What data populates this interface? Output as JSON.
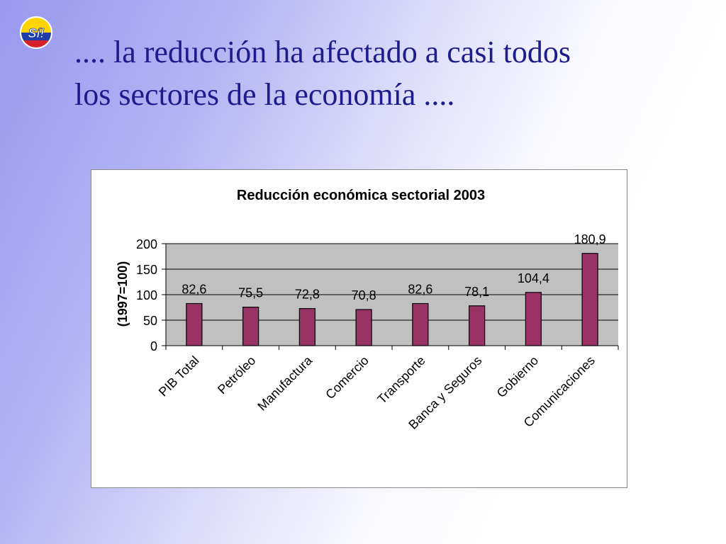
{
  "slide": {
    "title_line1": ".... la reducción ha afectado a casi todos",
    "title_line2": "los sectores de la economía ....",
    "logo_text": "Sí!"
  },
  "colors": {
    "bar_fill": "#993366",
    "bar_stroke": "#000000",
    "plot_bg": "#c0c0c0",
    "title_color": "#1c1c8c"
  },
  "chart_data": {
    "type": "bar",
    "title": "Reducción económica sectorial 2003",
    "xlabel": "",
    "ylabel": "(1997=100)",
    "categories": [
      "PIB Total",
      "Petróleo",
      "Manufactura",
      "Comercio",
      "Transporte",
      "Banca y Seguros",
      "Gobierno",
      "Comunicaciones"
    ],
    "values": [
      82.6,
      75.5,
      72.8,
      70.8,
      82.6,
      78.1,
      104.4,
      180.9
    ],
    "value_labels": [
      "82,6",
      "75,5",
      "72,8",
      "70,8",
      "82,6",
      "78,1",
      "104,4",
      "180,9"
    ],
    "ylim": [
      0,
      200
    ],
    "yticks": [
      0,
      50,
      100,
      150,
      200
    ],
    "ytick_labels": [
      "0",
      "50",
      "100",
      "150",
      "200"
    ],
    "grid": true,
    "legend": "none"
  }
}
